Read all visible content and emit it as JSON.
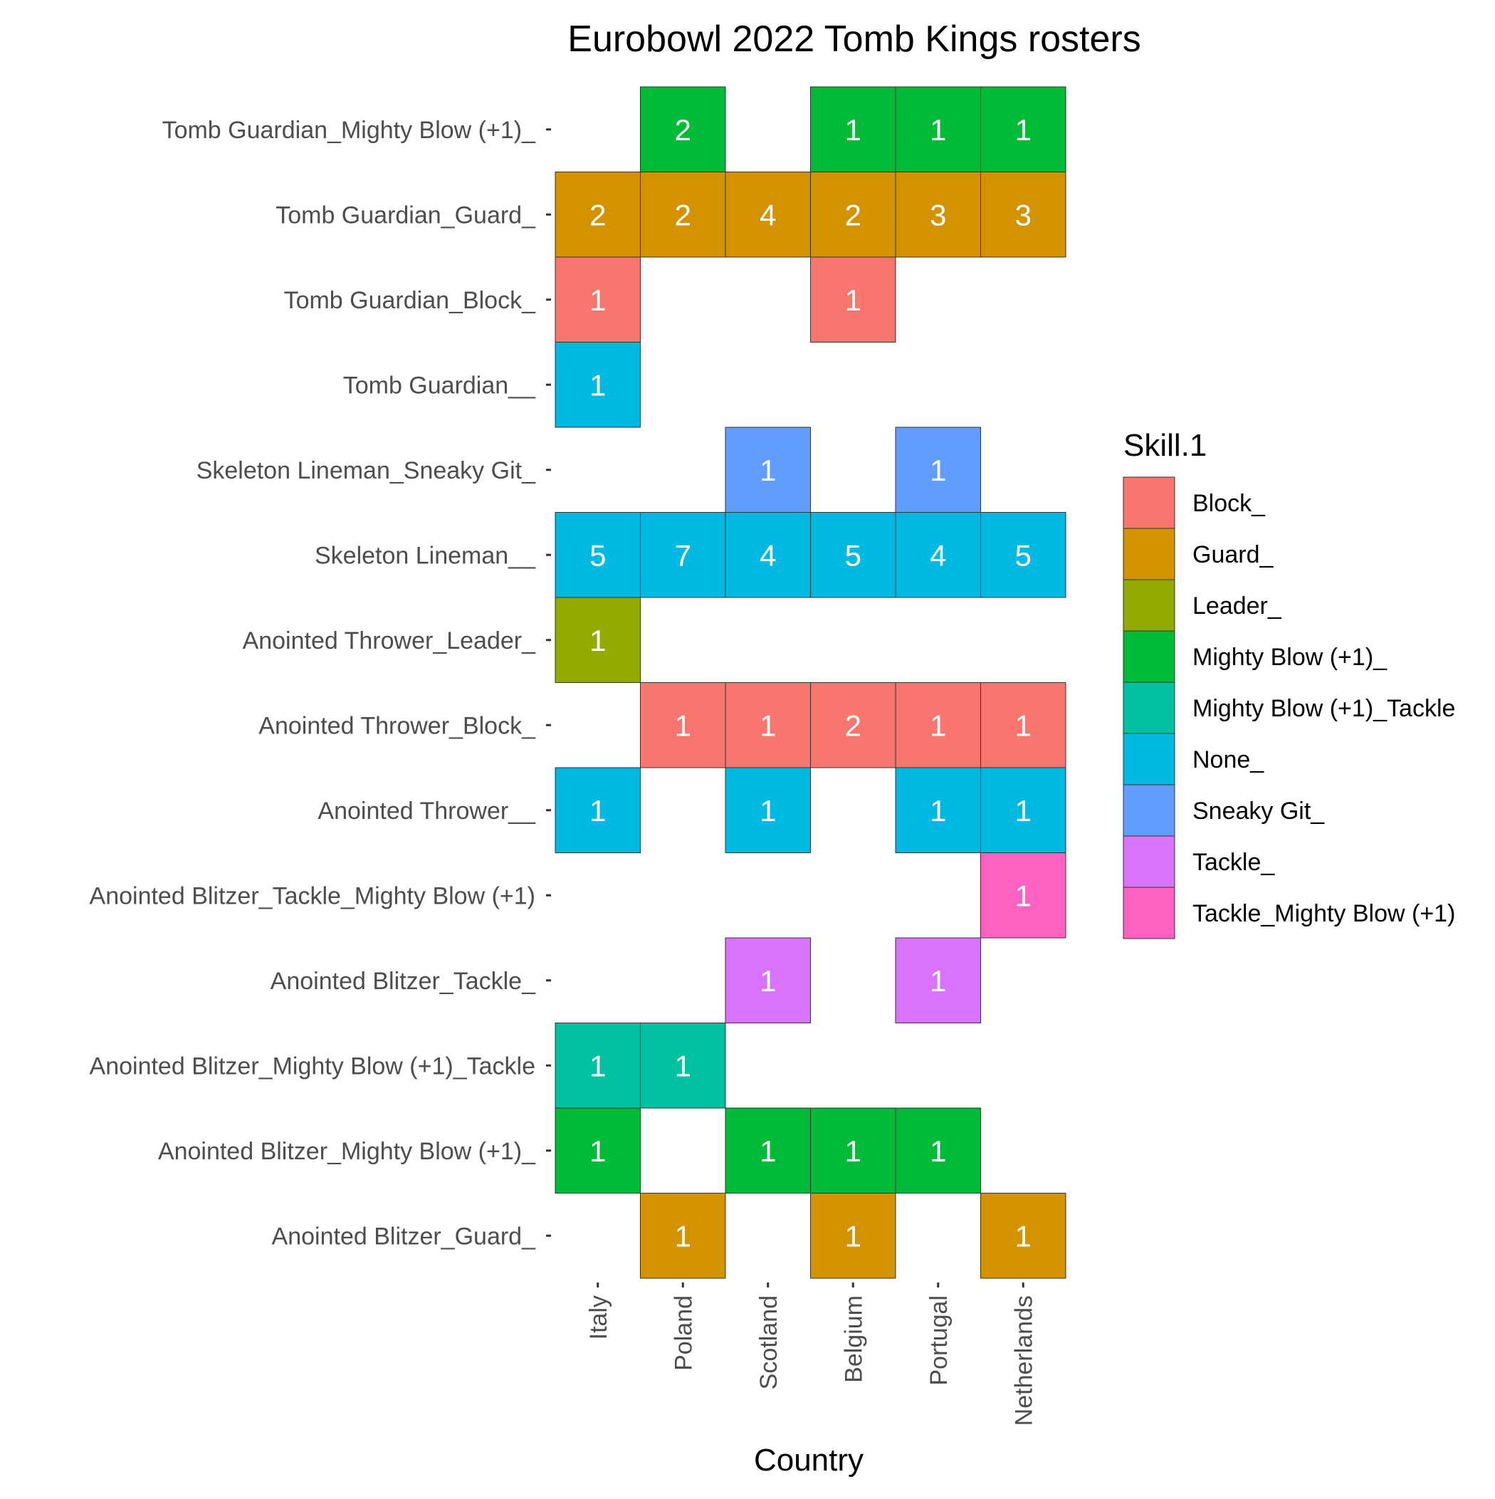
{
  "chart_data": {
    "type": "heatmap",
    "title": "Eurobowl 2022 Tomb Kings rosters",
    "xlabel": "Country",
    "ylabel": "",
    "x_categories": [
      "Italy",
      "Poland",
      "Scotland",
      "Belgium",
      "Portugal",
      "Netherlands"
    ],
    "y_categories": [
      "Tomb Guardian_Mighty Blow (+1)_",
      "Tomb Guardian_Guard_",
      "Tomb Guardian_Block_",
      "Tomb Guardian__",
      "Skeleton Lineman_Sneaky Git_",
      "Skeleton Lineman__",
      "Anointed Thrower_Leader_",
      "Anointed Thrower_Block_",
      "Anointed Thrower__",
      "Anointed Blitzer_Tackle_Mighty Blow (+1)",
      "Anointed Blitzer_Tackle_",
      "Anointed Blitzer_Mighty Blow (+1)_Tackle",
      "Anointed Blitzer_Mighty Blow (+1)_",
      "Anointed Blitzer_Guard_"
    ],
    "legend": {
      "title": "Skill.1",
      "position": "right",
      "entries": [
        {
          "name": "Block_",
          "color": "#F8766D"
        },
        {
          "name": "Guard_",
          "color": "#D39200"
        },
        {
          "name": "Leader_",
          "color": "#93AA00"
        },
        {
          "name": "Mighty Blow (+1)_",
          "color": "#00BA38"
        },
        {
          "name": "Mighty Blow (+1)_Tackle",
          "color": "#00C19F"
        },
        {
          "name": "None_",
          "color": "#00B9E3"
        },
        {
          "name": "Sneaky Git_",
          "color": "#619CFF"
        },
        {
          "name": "Tackle_",
          "color": "#DB72FB"
        },
        {
          "name": "Tackle_Mighty Blow (+1)",
          "color": "#FF61C3"
        }
      ]
    },
    "cells": [
      {
        "x": "Poland",
        "y": "Tomb Guardian_Mighty Blow (+1)_",
        "value": 2,
        "skill": "Mighty Blow (+1)_"
      },
      {
        "x": "Belgium",
        "y": "Tomb Guardian_Mighty Blow (+1)_",
        "value": 1,
        "skill": "Mighty Blow (+1)_"
      },
      {
        "x": "Portugal",
        "y": "Tomb Guardian_Mighty Blow (+1)_",
        "value": 1,
        "skill": "Mighty Blow (+1)_"
      },
      {
        "x": "Netherlands",
        "y": "Tomb Guardian_Mighty Blow (+1)_",
        "value": 1,
        "skill": "Mighty Blow (+1)_"
      },
      {
        "x": "Italy",
        "y": "Tomb Guardian_Guard_",
        "value": 2,
        "skill": "Guard_"
      },
      {
        "x": "Poland",
        "y": "Tomb Guardian_Guard_",
        "value": 2,
        "skill": "Guard_"
      },
      {
        "x": "Scotland",
        "y": "Tomb Guardian_Guard_",
        "value": 4,
        "skill": "Guard_"
      },
      {
        "x": "Belgium",
        "y": "Tomb Guardian_Guard_",
        "value": 2,
        "skill": "Guard_"
      },
      {
        "x": "Portugal",
        "y": "Tomb Guardian_Guard_",
        "value": 3,
        "skill": "Guard_"
      },
      {
        "x": "Netherlands",
        "y": "Tomb Guardian_Guard_",
        "value": 3,
        "skill": "Guard_"
      },
      {
        "x": "Italy",
        "y": "Tomb Guardian_Block_",
        "value": 1,
        "skill": "Block_"
      },
      {
        "x": "Belgium",
        "y": "Tomb Guardian_Block_",
        "value": 1,
        "skill": "Block_"
      },
      {
        "x": "Italy",
        "y": "Tomb Guardian__",
        "value": 1,
        "skill": "None_"
      },
      {
        "x": "Scotland",
        "y": "Skeleton Lineman_Sneaky Git_",
        "value": 1,
        "skill": "Sneaky Git_"
      },
      {
        "x": "Portugal",
        "y": "Skeleton Lineman_Sneaky Git_",
        "value": 1,
        "skill": "Sneaky Git_"
      },
      {
        "x": "Italy",
        "y": "Skeleton Lineman__",
        "value": 5,
        "skill": "None_"
      },
      {
        "x": "Poland",
        "y": "Skeleton Lineman__",
        "value": 7,
        "skill": "None_"
      },
      {
        "x": "Scotland",
        "y": "Skeleton Lineman__",
        "value": 4,
        "skill": "None_"
      },
      {
        "x": "Belgium",
        "y": "Skeleton Lineman__",
        "value": 5,
        "skill": "None_"
      },
      {
        "x": "Portugal",
        "y": "Skeleton Lineman__",
        "value": 4,
        "skill": "None_"
      },
      {
        "x": "Netherlands",
        "y": "Skeleton Lineman__",
        "value": 5,
        "skill": "None_"
      },
      {
        "x": "Italy",
        "y": "Anointed Thrower_Leader_",
        "value": 1,
        "skill": "Leader_"
      },
      {
        "x": "Poland",
        "y": "Anointed Thrower_Block_",
        "value": 1,
        "skill": "Block_"
      },
      {
        "x": "Scotland",
        "y": "Anointed Thrower_Block_",
        "value": 1,
        "skill": "Block_"
      },
      {
        "x": "Belgium",
        "y": "Anointed Thrower_Block_",
        "value": 2,
        "skill": "Block_"
      },
      {
        "x": "Portugal",
        "y": "Anointed Thrower_Block_",
        "value": 1,
        "skill": "Block_"
      },
      {
        "x": "Netherlands",
        "y": "Anointed Thrower_Block_",
        "value": 1,
        "skill": "Block_"
      },
      {
        "x": "Italy",
        "y": "Anointed Thrower__",
        "value": 1,
        "skill": "None_"
      },
      {
        "x": "Scotland",
        "y": "Anointed Thrower__",
        "value": 1,
        "skill": "None_"
      },
      {
        "x": "Portugal",
        "y": "Anointed Thrower__",
        "value": 1,
        "skill": "None_"
      },
      {
        "x": "Netherlands",
        "y": "Anointed Thrower__",
        "value": 1,
        "skill": "None_"
      },
      {
        "x": "Netherlands",
        "y": "Anointed Blitzer_Tackle_Mighty Blow (+1)",
        "value": 1,
        "skill": "Tackle_Mighty Blow (+1)"
      },
      {
        "x": "Scotland",
        "y": "Anointed Blitzer_Tackle_",
        "value": 1,
        "skill": "Tackle_"
      },
      {
        "x": "Portugal",
        "y": "Anointed Blitzer_Tackle_",
        "value": 1,
        "skill": "Tackle_"
      },
      {
        "x": "Italy",
        "y": "Anointed Blitzer_Mighty Blow (+1)_Tackle",
        "value": 1,
        "skill": "Mighty Blow (+1)_Tackle"
      },
      {
        "x": "Poland",
        "y": "Anointed Blitzer_Mighty Blow (+1)_Tackle",
        "value": 1,
        "skill": "Mighty Blow (+1)_Tackle"
      },
      {
        "x": "Italy",
        "y": "Anointed Blitzer_Mighty Blow (+1)_",
        "value": 1,
        "skill": "Mighty Blow (+1)_"
      },
      {
        "x": "Scotland",
        "y": "Anointed Blitzer_Mighty Blow (+1)_",
        "value": 1,
        "skill": "Mighty Blow (+1)_"
      },
      {
        "x": "Belgium",
        "y": "Anointed Blitzer_Mighty Blow (+1)_",
        "value": 1,
        "skill": "Mighty Blow (+1)_"
      },
      {
        "x": "Portugal",
        "y": "Anointed Blitzer_Mighty Blow (+1)_",
        "value": 1,
        "skill": "Mighty Blow (+1)_"
      },
      {
        "x": "Poland",
        "y": "Anointed Blitzer_Guard_",
        "value": 1,
        "skill": "Guard_"
      },
      {
        "x": "Belgium",
        "y": "Anointed Blitzer_Guard_",
        "value": 1,
        "skill": "Guard_"
      },
      {
        "x": "Netherlands",
        "y": "Anointed Blitzer_Guard_",
        "value": 1,
        "skill": "Guard_"
      }
    ],
    "grid": false
  }
}
